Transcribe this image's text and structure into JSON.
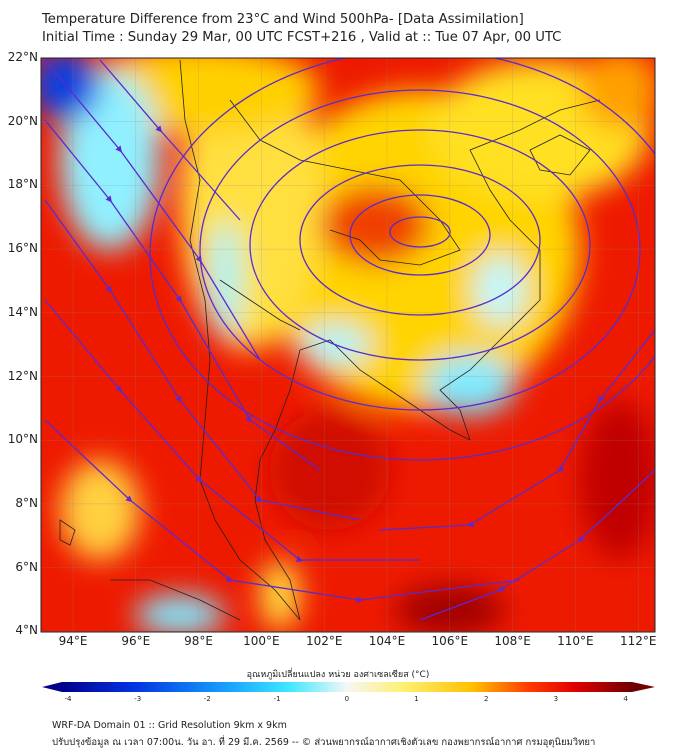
{
  "header": {
    "title": "Temperature Difference from 23°C and Wind 500hPa- [Data Assimilation]",
    "subtitle": "Initial Time : Sunday 29 Mar, 00 UTC FCST+216 , Valid at ::  Tue 07 Apr, 00 UTC"
  },
  "map": {
    "lat_labels": [
      "22°N",
      "20°N",
      "18°N",
      "16°N",
      "14°N",
      "12°N",
      "10°N",
      "8°N",
      "6°N",
      "4°N"
    ],
    "lon_labels": [
      "94°E",
      "96°E",
      "98°E",
      "100°E",
      "102°E",
      "104°E",
      "106°E",
      "108°E",
      "110°E",
      "112°E"
    ],
    "extent": {
      "lon": [
        93,
        112.5
      ],
      "lat": [
        4,
        22
      ]
    }
  },
  "colorbar": {
    "title": "อุณหภูมิเปลี่ยนแปลง หน่วย องศาเซลเซียส (°C)",
    "ticks": [
      "-4",
      "-3",
      "-2",
      "-1",
      "0",
      "1",
      "2",
      "3",
      "4"
    ],
    "range": [
      -4,
      4
    ],
    "colors": [
      "#00008b",
      "#0040ff",
      "#00bfff",
      "#7fffff",
      "#ffffff",
      "#ffff80",
      "#ffc000",
      "#ff3000",
      "#ff0000",
      "#800000"
    ]
  },
  "footer": {
    "line1": "WRF-DA Domain 01 :: Grid Resolution 9km x 9km",
    "line2": "ปรับปรุงข้อมูล ณ เวลา 07:00น. วัน อา. ที่ 29 มี.ค. 2569 -- © ส่วนพยากรณ์อากาศเชิงตัวเลข กองพยากรณ์อากาศ กรมอุตุนิยมวิทยา"
  }
}
